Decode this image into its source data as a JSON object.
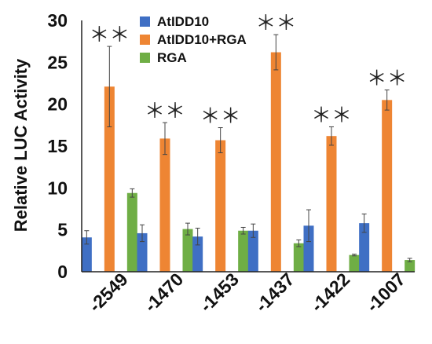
{
  "chart_data": {
    "type": "bar",
    "categories": [
      "-2549",
      "-1470",
      "-1453",
      "-1437",
      "-1422",
      "-1007"
    ],
    "series": [
      {
        "name": "AtIDD10",
        "color": "#3F6FC4",
        "values": [
          4.1,
          4.6,
          4.2,
          4.9,
          5.5,
          5.8
        ],
        "errors": [
          0.8,
          1.0,
          1.0,
          0.8,
          1.9,
          1.1
        ]
      },
      {
        "name": "AtIDD10+RGA",
        "color": "#EE8533",
        "values": [
          22.1,
          15.9,
          15.7,
          26.2,
          16.2,
          20.5
        ],
        "errors": [
          4.8,
          1.9,
          1.5,
          2.1,
          1.1,
          1.2
        ]
      },
      {
        "name": "RGA",
        "color": "#6FAE45",
        "values": [
          9.4,
          5.1,
          4.9,
          3.4,
          2.0,
          1.4
        ],
        "errors": [
          0.5,
          0.7,
          0.4,
          0.4,
          0.1,
          0.2
        ]
      }
    ],
    "significance": [
      "＊＊",
      "＊＊",
      "＊＊",
      "＊＊",
      "＊＊",
      "＊＊"
    ],
    "ylabel": "Relative LUC Activity",
    "yticks": [
      "0",
      "5",
      "10",
      "15",
      "20",
      "25",
      "30"
    ],
    "ylim": [
      0,
      30
    ],
    "grid": false,
    "legend_position": "top-left"
  }
}
